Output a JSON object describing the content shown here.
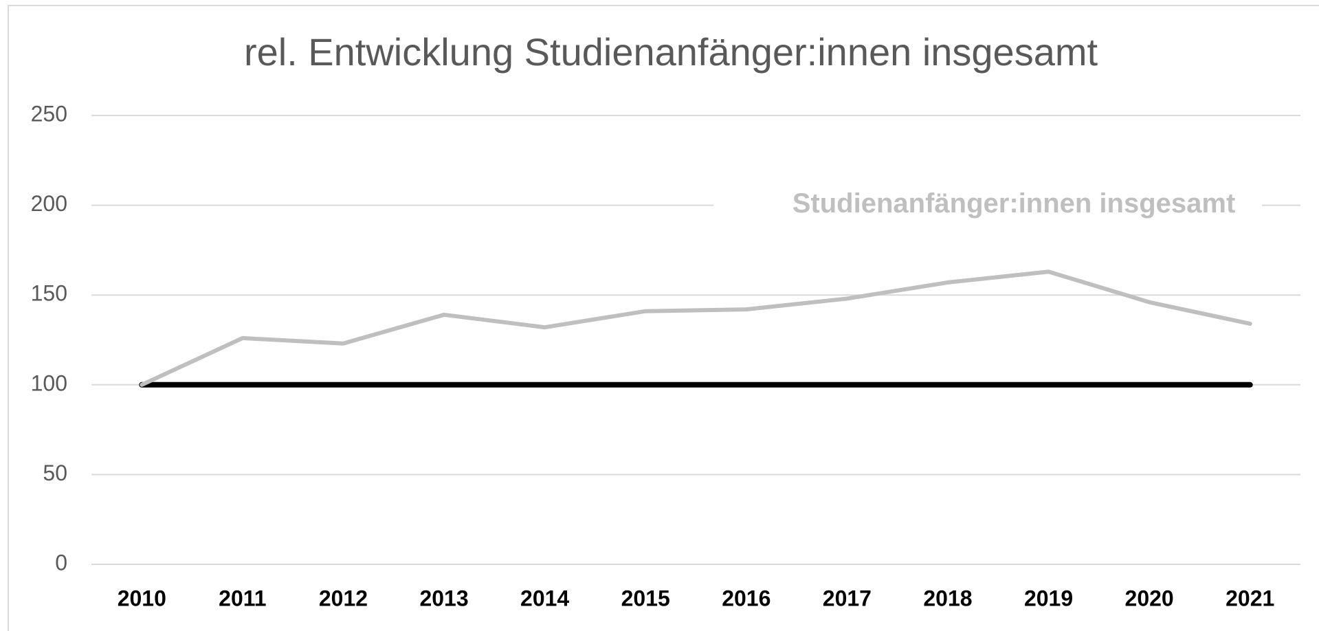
{
  "chart_data": {
    "type": "line",
    "title": "rel. Entwicklung Studienanfänger:innen insgesamt",
    "categories": [
      "2010",
      "2011",
      "2012",
      "2013",
      "2014",
      "2015",
      "2016",
      "2017",
      "2018",
      "2019",
      "2020",
      "2021"
    ],
    "series": [
      {
        "name": "Studienanfänger:innen insgesamt",
        "color": "#bfbfbf",
        "values": [
          100,
          126,
          123,
          139,
          132,
          141,
          142,
          148,
          157,
          163,
          146,
          134
        ]
      },
      {
        "color": "#000000",
        "values": [
          100,
          100,
          100,
          100,
          100,
          100,
          100,
          100,
          100,
          100,
          100,
          100
        ]
      }
    ],
    "ylim": [
      0,
      250
    ],
    "yticks": [
      0,
      50,
      100,
      150,
      200,
      250
    ],
    "grid": true
  }
}
